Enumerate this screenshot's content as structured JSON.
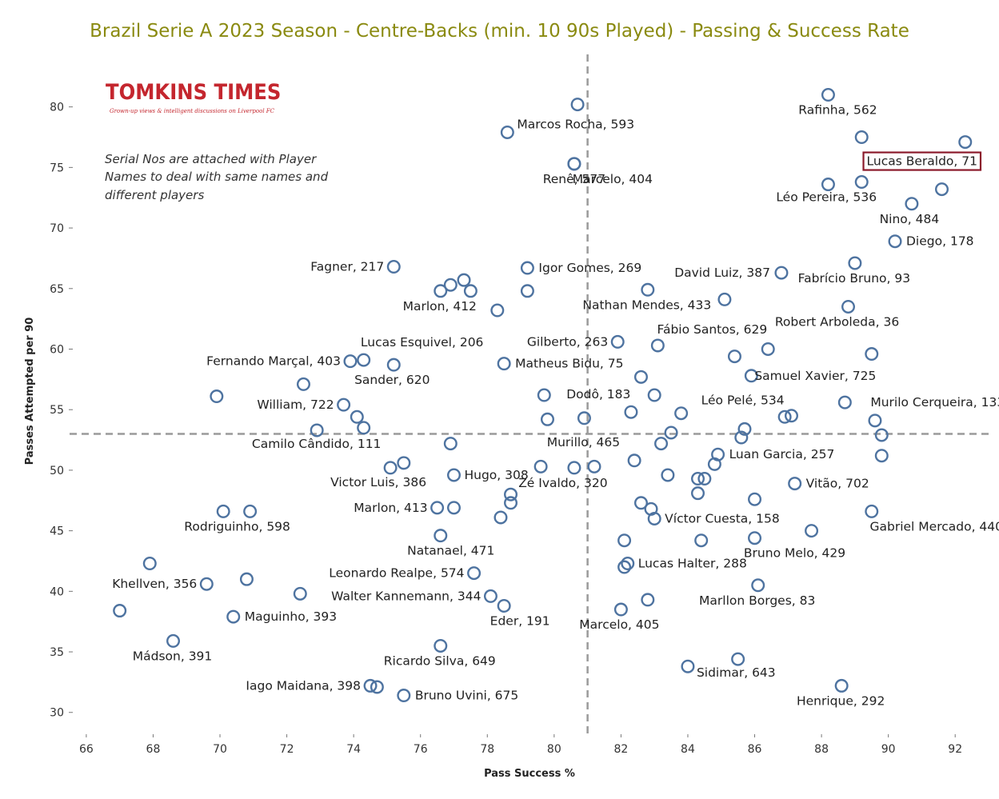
{
  "title": "Brazil Serie A 2023 Season - Centre-Backs (min. 10 90s Played) - Passing & Success Rate",
  "logo": {
    "text": "TOMKINS TIMES",
    "tagline": "Grown-up views & intelligent discussions on Liverpool FC"
  },
  "note_lines": [
    "Serial Nos are attached with Player",
    "Names to deal with same names and",
    "different players"
  ],
  "colors": {
    "marker": "#4e73a0",
    "title": "#8a8a10",
    "reference_line": "#9a9a9a",
    "highlight_box": "#8b1a2b"
  },
  "chart_data": {
    "type": "scatter",
    "title": "Brazil Serie A 2023 Season - Centre-Backs (min. 10 90s Played) - Passing & Success Rate",
    "xlabel": "Pass Success %",
    "ylabel": "Passes Attempted per 90",
    "xlim": [
      65.5,
      93
    ],
    "ylim": [
      28.2,
      84.6
    ],
    "xticks": [
      66,
      68,
      70,
      72,
      74,
      76,
      78,
      80,
      82,
      84,
      86,
      88,
      90,
      92
    ],
    "yticks": [
      30,
      35,
      40,
      45,
      50,
      55,
      60,
      65,
      70,
      75,
      80
    ],
    "reference_lines": {
      "x": 81,
      "y": 53
    },
    "grid": false,
    "highlighted": "Lucas Beraldo, 71",
    "points": [
      {
        "x": 80.7,
        "y": 80.2,
        "label": ""
      },
      {
        "x": 78.6,
        "y": 77.9,
        "label": "Marcos Rocha, 593"
      },
      {
        "x": 80.6,
        "y": 75.3,
        "label": "Marcelo, 404"
      },
      {
        "x": 80.6,
        "y": 75.3,
        "label": "Renê, 577"
      },
      {
        "x": 88.2,
        "y": 81.0,
        "label": "Rafinha, 562"
      },
      {
        "x": 89.2,
        "y": 77.5,
        "label": ""
      },
      {
        "x": 92.3,
        "y": 77.1,
        "label": "Lucas Beraldo, 71"
      },
      {
        "x": 88.2,
        "y": 73.6,
        "label": ""
      },
      {
        "x": 89.2,
        "y": 73.8,
        "label": "Léo Pereira, 536"
      },
      {
        "x": 91.6,
        "y": 73.2,
        "label": ""
      },
      {
        "x": 90.7,
        "y": 72.0,
        "label": "Nino, 484"
      },
      {
        "x": 90.2,
        "y": 68.9,
        "label": "Diego, 178"
      },
      {
        "x": 75.2,
        "y": 66.8,
        "label": "Fagner, 217"
      },
      {
        "x": 79.2,
        "y": 66.7,
        "label": "Igor Gomes, 269"
      },
      {
        "x": 86.8,
        "y": 66.3,
        "label": "David Luiz, 387"
      },
      {
        "x": 89.0,
        "y": 67.1,
        "label": "Fabrício Bruno, 93"
      },
      {
        "x": 77.3,
        "y": 65.7,
        "label": ""
      },
      {
        "x": 76.9,
        "y": 65.3,
        "label": ""
      },
      {
        "x": 76.6,
        "y": 64.8,
        "label": "Marlon, 412"
      },
      {
        "x": 77.5,
        "y": 64.8,
        "label": ""
      },
      {
        "x": 79.2,
        "y": 64.8,
        "label": ""
      },
      {
        "x": 82.8,
        "y": 64.9,
        "label": "Nathan Mendes, 433"
      },
      {
        "x": 85.1,
        "y": 64.1,
        "label": ""
      },
      {
        "x": 78.3,
        "y": 63.2,
        "label": ""
      },
      {
        "x": 88.8,
        "y": 63.5,
        "label": "Robert Arboleda, 36"
      },
      {
        "x": 81.9,
        "y": 60.6,
        "label": "Gilberto, 263"
      },
      {
        "x": 83.1,
        "y": 60.3,
        "label": "Fábio Santos, 629"
      },
      {
        "x": 86.4,
        "y": 60.0,
        "label": ""
      },
      {
        "x": 85.4,
        "y": 59.4,
        "label": ""
      },
      {
        "x": 89.5,
        "y": 59.6,
        "label": ""
      },
      {
        "x": 74.3,
        "y": 59.1,
        "label": "Lucas Esquivel, 206"
      },
      {
        "x": 73.9,
        "y": 59.0,
        "label": "Fernando Marçal, 403"
      },
      {
        "x": 75.2,
        "y": 58.7,
        "label": "Sander, 620"
      },
      {
        "x": 78.5,
        "y": 58.8,
        "label": "Matheus Bidu, 75"
      },
      {
        "x": 82.6,
        "y": 57.7,
        "label": ""
      },
      {
        "x": 85.9,
        "y": 57.8,
        "label": "Samuel Xavier, 725"
      },
      {
        "x": 72.5,
        "y": 57.1,
        "label": ""
      },
      {
        "x": 69.9,
        "y": 56.1,
        "label": ""
      },
      {
        "x": 79.7,
        "y": 56.2,
        "label": "Dodô, 183"
      },
      {
        "x": 83.0,
        "y": 56.2,
        "label": ""
      },
      {
        "x": 73.7,
        "y": 55.4,
        "label": "William, 722"
      },
      {
        "x": 88.7,
        "y": 55.6,
        "label": "Murilo Cerqueira, 133"
      },
      {
        "x": 83.8,
        "y": 54.7,
        "label": "Léo Pelé, 534"
      },
      {
        "x": 82.3,
        "y": 54.8,
        "label": ""
      },
      {
        "x": 87.1,
        "y": 54.5,
        "label": ""
      },
      {
        "x": 86.9,
        "y": 54.4,
        "label": ""
      },
      {
        "x": 74.1,
        "y": 54.4,
        "label": ""
      },
      {
        "x": 79.8,
        "y": 54.2,
        "label": ""
      },
      {
        "x": 80.9,
        "y": 54.3,
        "label": "Murillo, 465"
      },
      {
        "x": 89.6,
        "y": 54.1,
        "label": ""
      },
      {
        "x": 72.9,
        "y": 53.3,
        "label": ""
      },
      {
        "x": 74.3,
        "y": 53.5,
        "label": "Camilo Cândido, 111"
      },
      {
        "x": 85.7,
        "y": 53.4,
        "label": ""
      },
      {
        "x": 83.5,
        "y": 53.1,
        "label": ""
      },
      {
        "x": 85.6,
        "y": 52.7,
        "label": ""
      },
      {
        "x": 89.8,
        "y": 52.9,
        "label": ""
      },
      {
        "x": 76.9,
        "y": 52.2,
        "label": ""
      },
      {
        "x": 83.2,
        "y": 52.2,
        "label": ""
      },
      {
        "x": 84.9,
        "y": 51.3,
        "label": "Luan Garcia, 257"
      },
      {
        "x": 89.8,
        "y": 51.2,
        "label": ""
      },
      {
        "x": 82.4,
        "y": 50.8,
        "label": ""
      },
      {
        "x": 84.8,
        "y": 50.5,
        "label": ""
      },
      {
        "x": 75.5,
        "y": 50.6,
        "label": ""
      },
      {
        "x": 75.1,
        "y": 50.2,
        "label": "Victor Luis, 386"
      },
      {
        "x": 79.6,
        "y": 50.3,
        "label": ""
      },
      {
        "x": 80.6,
        "y": 50.2,
        "label": "Zé Ivaldo, 320"
      },
      {
        "x": 81.2,
        "y": 50.3,
        "label": ""
      },
      {
        "x": 77.0,
        "y": 49.6,
        "label": "Hugo, 308"
      },
      {
        "x": 83.4,
        "y": 49.6,
        "label": ""
      },
      {
        "x": 84.3,
        "y": 49.3,
        "label": ""
      },
      {
        "x": 84.5,
        "y": 49.3,
        "label": ""
      },
      {
        "x": 87.2,
        "y": 48.9,
        "label": "Vitão, 702"
      },
      {
        "x": 78.7,
        "y": 48.0,
        "label": ""
      },
      {
        "x": 84.3,
        "y": 48.1,
        "label": ""
      },
      {
        "x": 78.7,
        "y": 47.3,
        "label": ""
      },
      {
        "x": 82.6,
        "y": 47.3,
        "label": ""
      },
      {
        "x": 86.0,
        "y": 47.6,
        "label": ""
      },
      {
        "x": 76.5,
        "y": 46.9,
        "label": "Marlon, 413"
      },
      {
        "x": 77.0,
        "y": 46.9,
        "label": ""
      },
      {
        "x": 82.9,
        "y": 46.8,
        "label": ""
      },
      {
        "x": 70.1,
        "y": 46.6,
        "label": ""
      },
      {
        "x": 70.9,
        "y": 46.6,
        "label": "Rodriguinho, 598"
      },
      {
        "x": 89.5,
        "y": 46.6,
        "label": "Gabriel Mercado, 440"
      },
      {
        "x": 78.4,
        "y": 46.1,
        "label": ""
      },
      {
        "x": 83.0,
        "y": 46.0,
        "label": "Víctor Cuesta, 158"
      },
      {
        "x": 87.7,
        "y": 45.0,
        "label": ""
      },
      {
        "x": 76.6,
        "y": 44.6,
        "label": "Natanael, 471"
      },
      {
        "x": 86.0,
        "y": 44.4,
        "label": "Bruno Melo, 429"
      },
      {
        "x": 82.1,
        "y": 44.2,
        "label": ""
      },
      {
        "x": 84.4,
        "y": 44.2,
        "label": ""
      },
      {
        "x": 67.9,
        "y": 42.3,
        "label": ""
      },
      {
        "x": 82.2,
        "y": 42.3,
        "label": "Lucas Halter, 288"
      },
      {
        "x": 82.1,
        "y": 42.0,
        "label": ""
      },
      {
        "x": 77.6,
        "y": 41.5,
        "label": "Leonardo Realpe, 574"
      },
      {
        "x": 70.8,
        "y": 41.0,
        "label": ""
      },
      {
        "x": 69.6,
        "y": 40.6,
        "label": "Khellven, 356"
      },
      {
        "x": 86.1,
        "y": 40.5,
        "label": "Marllon Borges, 83"
      },
      {
        "x": 72.4,
        "y": 39.8,
        "label": ""
      },
      {
        "x": 78.1,
        "y": 39.6,
        "label": "Walter Kannemann, 344"
      },
      {
        "x": 82.8,
        "y": 39.3,
        "label": ""
      },
      {
        "x": 78.5,
        "y": 38.8,
        "label": "Eder, 191"
      },
      {
        "x": 82.0,
        "y": 38.5,
        "label": "Marcelo, 405"
      },
      {
        "x": 67.0,
        "y": 38.4,
        "label": ""
      },
      {
        "x": 70.4,
        "y": 37.9,
        "label": "Maguinho, 393"
      },
      {
        "x": 68.6,
        "y": 35.9,
        "label": "Mádson, 391"
      },
      {
        "x": 76.6,
        "y": 35.5,
        "label": "Ricardo Silva, 649"
      },
      {
        "x": 85.5,
        "y": 34.4,
        "label": ""
      },
      {
        "x": 84.0,
        "y": 33.8,
        "label": "Sidimar, 643"
      },
      {
        "x": 74.5,
        "y": 32.2,
        "label": "Iago Maidana, 398"
      },
      {
        "x": 74.7,
        "y": 32.1,
        "label": ""
      },
      {
        "x": 88.6,
        "y": 32.2,
        "label": "Henrique, 292"
      },
      {
        "x": 75.5,
        "y": 31.4,
        "label": "Bruno Uvini, 675"
      }
    ]
  }
}
